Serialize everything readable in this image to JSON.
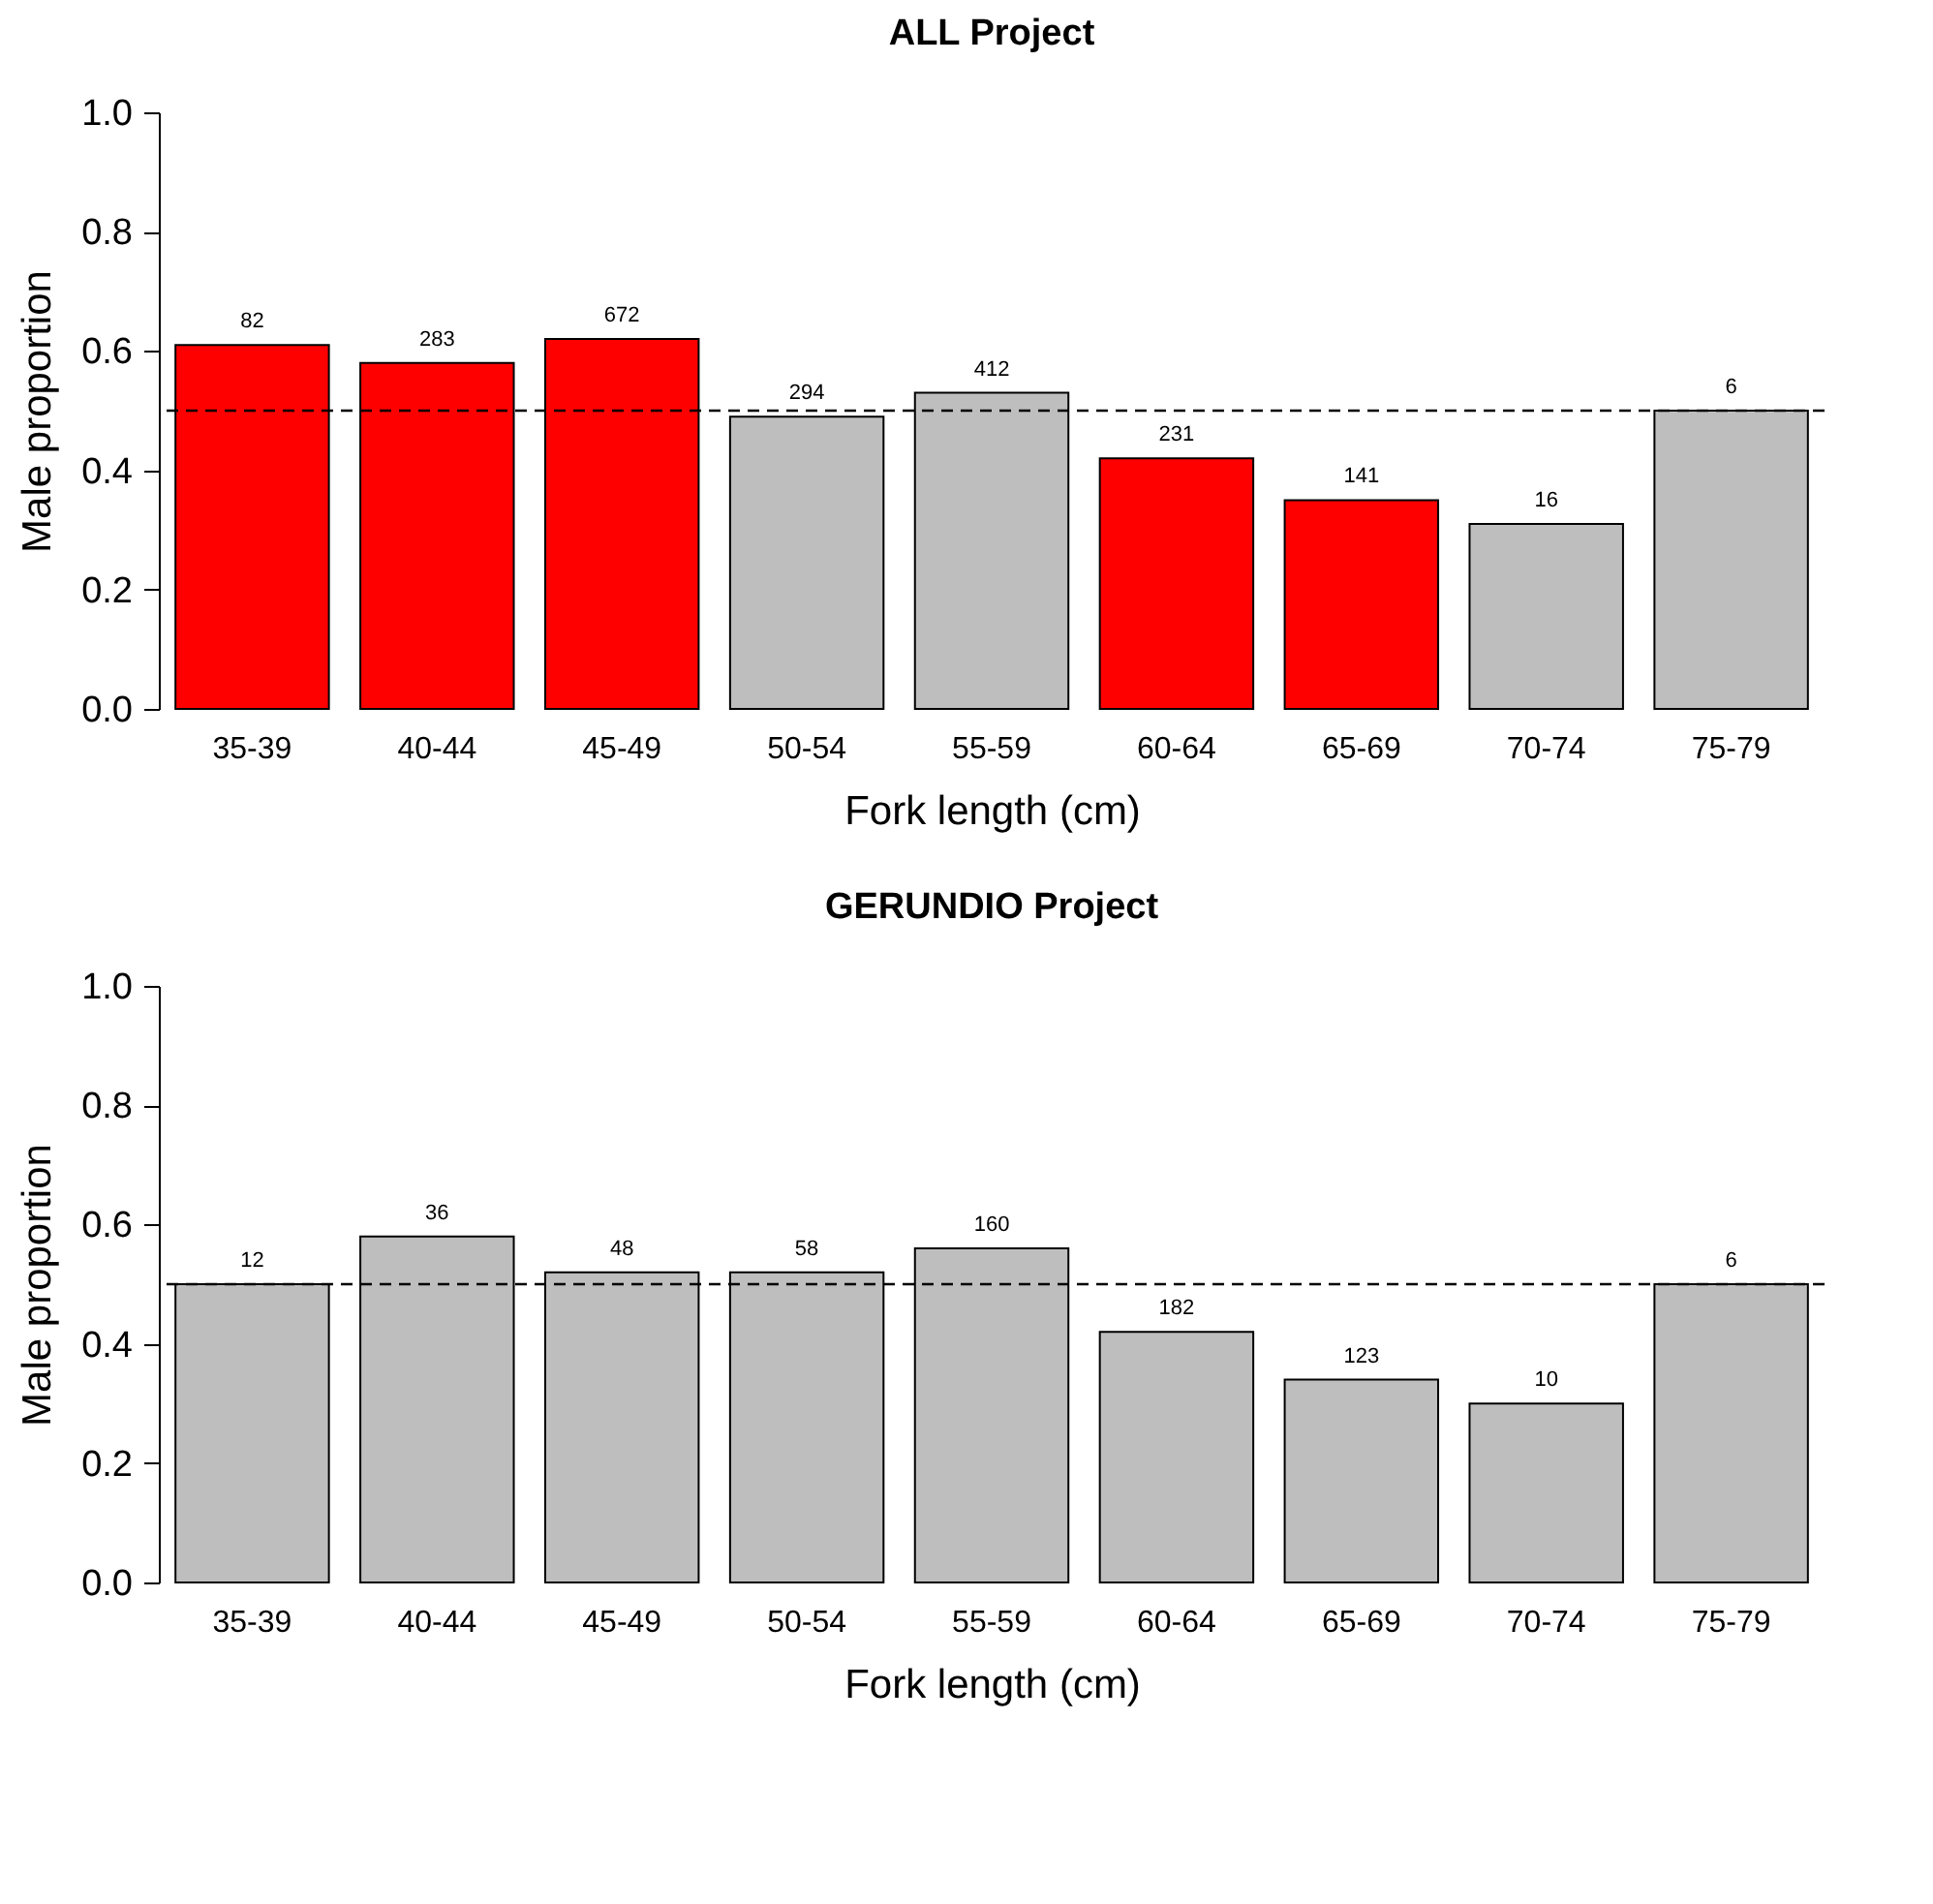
{
  "chart_data": [
    {
      "type": "bar",
      "title": "ALL Project",
      "xlabel": "Fork length (cm)",
      "ylabel": "Male proportion",
      "categories": [
        "35-39",
        "40-44",
        "45-49",
        "50-54",
        "55-59",
        "60-64",
        "65-69",
        "70-74",
        "75-79"
      ],
      "values": [
        0.61,
        0.58,
        0.62,
        0.49,
        0.53,
        0.42,
        0.35,
        0.31,
        0.5
      ],
      "colors": [
        "#ff0000",
        "#ff0000",
        "#ff0000",
        "#bebebe",
        "#bebebe",
        "#ff0000",
        "#ff0000",
        "#bebebe",
        "#bebebe"
      ],
      "annotations": [
        {
          "text": "82",
          "x": "35-39",
          "y": 0.61
        },
        {
          "text": "283",
          "x": "40-44",
          "y": 0.58
        },
        {
          "text": "672",
          "x": "45-49",
          "y": 0.62
        },
        {
          "text": "294",
          "x": "50-54",
          "y": 0.49
        },
        {
          "text": "412",
          "x": "55-59",
          "y": 0.53
        },
        {
          "text": "231",
          "x": "60-64",
          "y": 0.42
        },
        {
          "text": "141",
          "x": "65-69",
          "y": 0.35
        },
        {
          "text": "16",
          "x": "70-74",
          "y": 0.31
        },
        {
          "text": "6",
          "x": "75-79",
          "y": 0.5
        }
      ],
      "ylim": [
        0,
        1
      ],
      "yticks": [
        {
          "value": 0,
          "label": "0.0"
        },
        {
          "value": 0.2,
          "label": "0.2"
        },
        {
          "value": 0.4,
          "label": "0.4"
        },
        {
          "value": 0.6,
          "label": "0.6"
        },
        {
          "value": 0.8,
          "label": "0.8"
        },
        {
          "value": 1,
          "label": "1.0"
        }
      ],
      "ref_lines": [
        {
          "axis": "y",
          "value": 0.5,
          "line_style": "dashed",
          "color": "#000000"
        }
      ],
      "grid": false
    },
    {
      "type": "bar",
      "title": "GERUNDIO Project",
      "xlabel": "Fork length (cm)",
      "ylabel": "Male proportion",
      "categories": [
        "35-39",
        "40-44",
        "45-49",
        "50-54",
        "55-59",
        "60-64",
        "65-69",
        "70-74",
        "75-79"
      ],
      "values": [
        0.5,
        0.58,
        0.52,
        0.52,
        0.56,
        0.42,
        0.34,
        0.3,
        0.5
      ],
      "colors": [
        "#bebebe",
        "#bebebe",
        "#bebebe",
        "#bebebe",
        "#bebebe",
        "#bebebe",
        "#bebebe",
        "#bebebe",
        "#bebebe"
      ],
      "annotations": [
        {
          "text": "12",
          "x": "35-39",
          "y": 0.5
        },
        {
          "text": "36",
          "x": "40-44",
          "y": 0.58
        },
        {
          "text": "48",
          "x": "45-49",
          "y": 0.52
        },
        {
          "text": "58",
          "x": "50-54",
          "y": 0.52
        },
        {
          "text": "160",
          "x": "55-59",
          "y": 0.56
        },
        {
          "text": "182",
          "x": "60-64",
          "y": 0.42
        },
        {
          "text": "123",
          "x": "65-69",
          "y": 0.34
        },
        {
          "text": "10",
          "x": "70-74",
          "y": 0.3
        },
        {
          "text": "6",
          "x": "75-79",
          "y": 0.5
        }
      ],
      "ylim": [
        0,
        1
      ],
      "yticks": [
        {
          "value": 0,
          "label": "0.0"
        },
        {
          "value": 0.2,
          "label": "0.2"
        },
        {
          "value": 0.4,
          "label": "0.4"
        },
        {
          "value": 0.6,
          "label": "0.6"
        },
        {
          "value": 0.8,
          "label": "0.8"
        },
        {
          "value": 1,
          "label": "1.0"
        }
      ],
      "ref_lines": [
        {
          "axis": "y",
          "value": 0.5,
          "line_style": "dashed",
          "color": "#000000"
        }
      ],
      "grid": false
    }
  ]
}
